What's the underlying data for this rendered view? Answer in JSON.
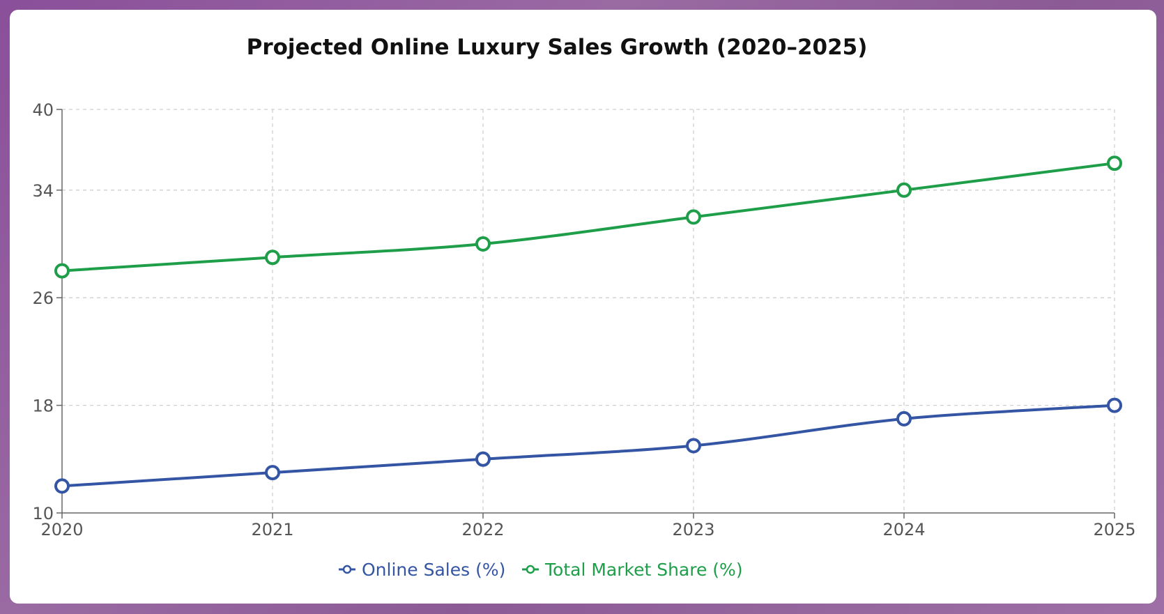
{
  "chart_data": {
    "type": "line",
    "title": "Projected Online Luxury Sales Growth (2020–2025)",
    "xlabel": "",
    "ylabel": "",
    "categories": [
      "2020",
      "2021",
      "2022",
      "2023",
      "2024",
      "2025"
    ],
    "y_ticks": [
      "10",
      "18",
      "26",
      "34",
      "40"
    ],
    "y_tick_values": [
      10,
      18,
      26,
      34,
      40
    ],
    "ylim": [
      10,
      40
    ],
    "grid": true,
    "legend_position": "bottom-center",
    "series": [
      {
        "name": "Online Sales (%)",
        "color": "#3355a3",
        "values": [
          12,
          13,
          14,
          15,
          17,
          18
        ]
      },
      {
        "name": "Total Market Share (%)",
        "color": "#1f9e4a",
        "values": [
          28,
          29,
          30,
          32,
          34,
          36
        ]
      }
    ]
  }
}
